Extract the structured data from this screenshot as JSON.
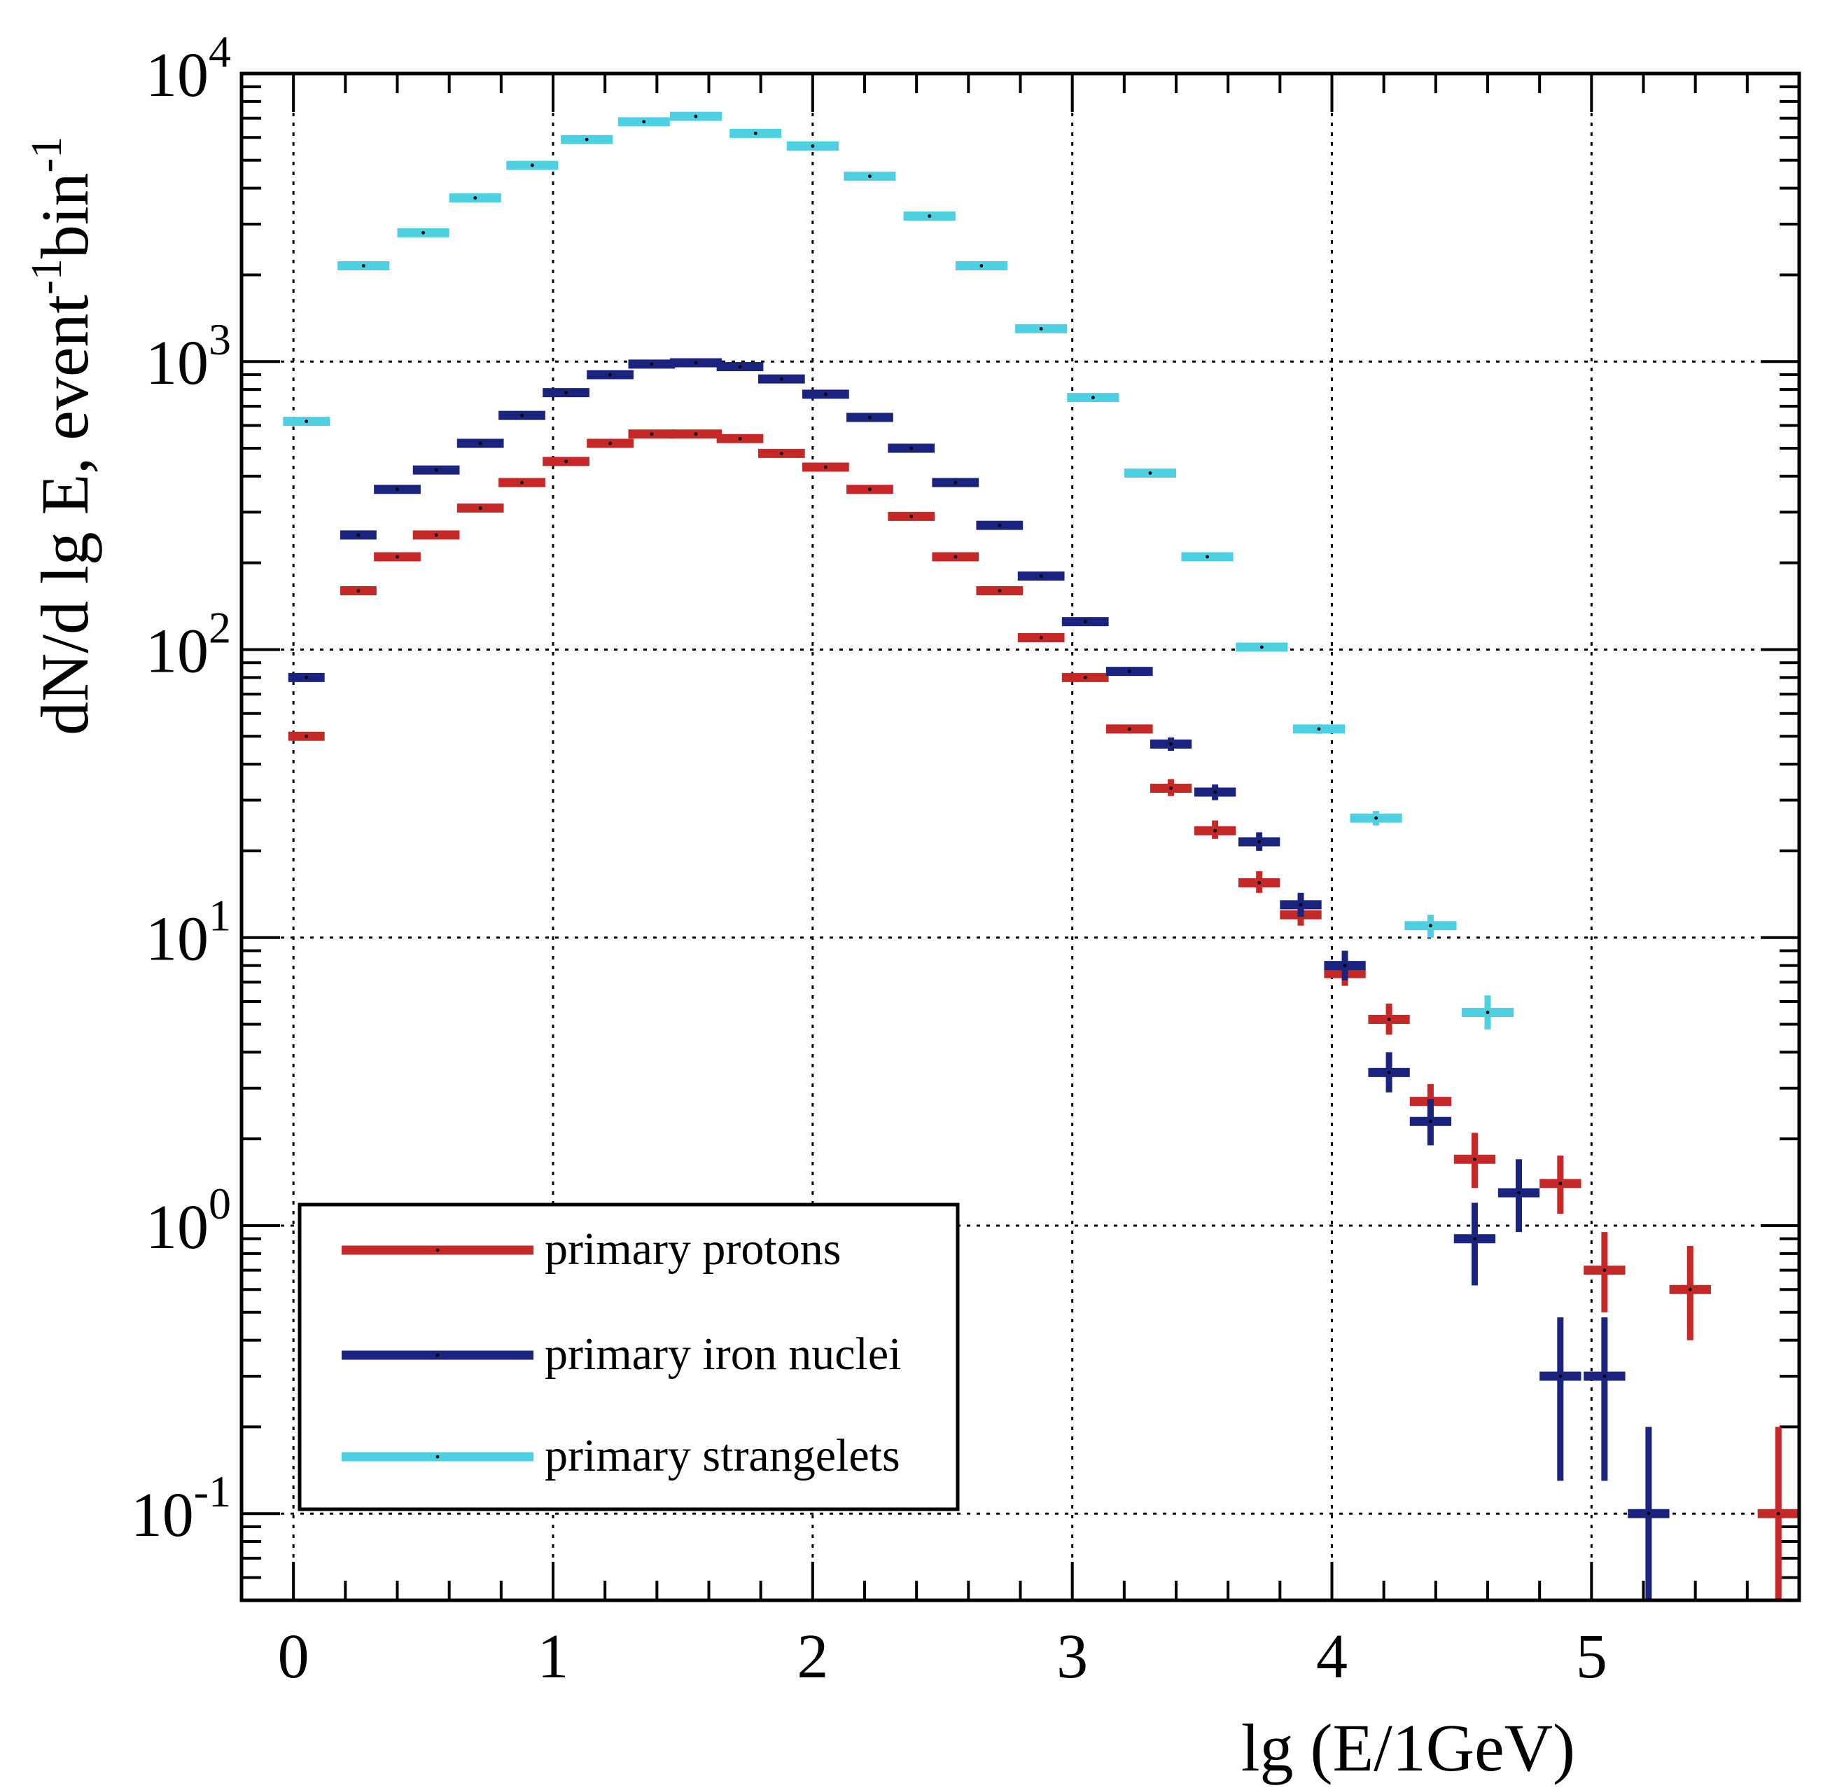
{
  "chart_data": {
    "type": "scatter",
    "style": "histogram-with-error-bars",
    "yscale": "log",
    "xlabel": "lg (E/1GeV)",
    "ylabel": {
      "base": "dN/d lg E, event",
      "sup1": "-1",
      "middle": "bin",
      "sup2": "-1"
    },
    "xlim": [
      -0.2,
      5.8
    ],
    "ylim": [
      0.05,
      10000
    ],
    "x_ticks": [
      {
        "value": 0,
        "label": "0"
      },
      {
        "value": 1,
        "label": "1"
      },
      {
        "value": 2,
        "label": "2"
      },
      {
        "value": 3,
        "label": "3"
      },
      {
        "value": 4,
        "label": "4"
      },
      {
        "value": 5,
        "label": "5"
      }
    ],
    "y_ticks": [
      {
        "value": 0.1,
        "base": "10",
        "exp": "-1"
      },
      {
        "value": 1,
        "base": "10",
        "exp": "0"
      },
      {
        "value": 10,
        "base": "10",
        "exp": "1"
      },
      {
        "value": 100,
        "base": "10",
        "exp": "2"
      },
      {
        "value": 1000,
        "base": "10",
        "exp": "3"
      },
      {
        "value": 10000,
        "base": "10",
        "exp": "4"
      }
    ],
    "grid": true,
    "legend_position": "bottom-left",
    "series": [
      {
        "name": "primary protons",
        "color": "#c62828",
        "points": [
          {
            "x": 0.05,
            "y": 50,
            "xerr": 0.07
          },
          {
            "x": 0.25,
            "y": 160,
            "xerr": 0.07
          },
          {
            "x": 0.4,
            "y": 210,
            "xerr": 0.09
          },
          {
            "x": 0.55,
            "y": 250,
            "xerr": 0.09
          },
          {
            "x": 0.72,
            "y": 310,
            "xerr": 0.09
          },
          {
            "x": 0.88,
            "y": 380,
            "xerr": 0.09
          },
          {
            "x": 1.05,
            "y": 450,
            "xerr": 0.09
          },
          {
            "x": 1.22,
            "y": 520,
            "xerr": 0.09
          },
          {
            "x": 1.38,
            "y": 560,
            "xerr": 0.09
          },
          {
            "x": 1.55,
            "y": 560,
            "xerr": 0.1
          },
          {
            "x": 1.72,
            "y": 540,
            "xerr": 0.09
          },
          {
            "x": 1.88,
            "y": 480,
            "xerr": 0.09
          },
          {
            "x": 2.05,
            "y": 430,
            "xerr": 0.09
          },
          {
            "x": 2.22,
            "y": 360,
            "xerr": 0.09
          },
          {
            "x": 2.38,
            "y": 290,
            "xerr": 0.09
          },
          {
            "x": 2.55,
            "y": 210,
            "xerr": 0.09
          },
          {
            "x": 2.72,
            "y": 160,
            "xerr": 0.09
          },
          {
            "x": 2.88,
            "y": 110,
            "xerr": 0.09
          },
          {
            "x": 3.05,
            "y": 80,
            "xerr": 0.09
          },
          {
            "x": 3.22,
            "y": 53,
            "xerr": 0.09
          },
          {
            "x": 3.38,
            "y": 33,
            "xerr": 0.08,
            "ylo": 31,
            "yhi": 35.5
          },
          {
            "x": 3.55,
            "y": 23.5,
            "xerr": 0.08,
            "ylo": 22,
            "yhi": 25.5
          },
          {
            "x": 3.72,
            "y": 15.5,
            "xerr": 0.08,
            "ylo": 14.3,
            "yhi": 17
          },
          {
            "x": 3.88,
            "y": 12,
            "xerr": 0.08,
            "ylo": 11,
            "yhi": 13.5
          },
          {
            "x": 4.05,
            "y": 7.5,
            "xerr": 0.08,
            "ylo": 6.8,
            "yhi": 8.5
          },
          {
            "x": 4.22,
            "y": 5.2,
            "xerr": 0.08,
            "ylo": 4.6,
            "yhi": 5.9
          },
          {
            "x": 4.38,
            "y": 2.7,
            "xerr": 0.08,
            "ylo": 2.3,
            "yhi": 3.1
          },
          {
            "x": 4.55,
            "y": 1.7,
            "xerr": 0.08,
            "ylo": 1.35,
            "yhi": 2.1
          },
          {
            "x": 4.88,
            "y": 1.4,
            "xerr": 0.08,
            "ylo": 1.1,
            "yhi": 1.75
          },
          {
            "x": 5.05,
            "y": 0.7,
            "xerr": 0.08,
            "ylo": 0.5,
            "yhi": 0.95
          },
          {
            "x": 5.38,
            "y": 0.6,
            "xerr": 0.08,
            "ylo": 0.4,
            "yhi": 0.85
          },
          {
            "x": 5.72,
            "y": 0.1,
            "xerr": 0.08,
            "ylo": 0.05,
            "yhi": 0.2
          }
        ]
      },
      {
        "name": "primary iron nuclei",
        "color": "#1a237e",
        "points": [
          {
            "x": 0.05,
            "y": 80,
            "xerr": 0.07
          },
          {
            "x": 0.25,
            "y": 250,
            "xerr": 0.07
          },
          {
            "x": 0.4,
            "y": 360,
            "xerr": 0.09
          },
          {
            "x": 0.55,
            "y": 420,
            "xerr": 0.09
          },
          {
            "x": 0.72,
            "y": 520,
            "xerr": 0.09
          },
          {
            "x": 0.88,
            "y": 650,
            "xerr": 0.09
          },
          {
            "x": 1.05,
            "y": 780,
            "xerr": 0.09
          },
          {
            "x": 1.22,
            "y": 900,
            "xerr": 0.09
          },
          {
            "x": 1.38,
            "y": 980,
            "xerr": 0.09
          },
          {
            "x": 1.55,
            "y": 990,
            "xerr": 0.1
          },
          {
            "x": 1.72,
            "y": 960,
            "xerr": 0.09
          },
          {
            "x": 1.88,
            "y": 870,
            "xerr": 0.09
          },
          {
            "x": 2.05,
            "y": 770,
            "xerr": 0.09
          },
          {
            "x": 2.22,
            "y": 640,
            "xerr": 0.09
          },
          {
            "x": 2.38,
            "y": 500,
            "xerr": 0.09
          },
          {
            "x": 2.55,
            "y": 380,
            "xerr": 0.09
          },
          {
            "x": 2.72,
            "y": 270,
            "xerr": 0.09
          },
          {
            "x": 2.88,
            "y": 180,
            "xerr": 0.09
          },
          {
            "x": 3.05,
            "y": 125,
            "xerr": 0.09
          },
          {
            "x": 3.22,
            "y": 84,
            "xerr": 0.09
          },
          {
            "x": 3.38,
            "y": 47,
            "xerr": 0.08,
            "ylo": 44.5,
            "yhi": 49.5
          },
          {
            "x": 3.55,
            "y": 32,
            "xerr": 0.08,
            "ylo": 30,
            "yhi": 34
          },
          {
            "x": 3.72,
            "y": 21.5,
            "xerr": 0.08,
            "ylo": 20,
            "yhi": 23.2
          },
          {
            "x": 3.88,
            "y": 13,
            "xerr": 0.08,
            "ylo": 11.8,
            "yhi": 14.3
          },
          {
            "x": 4.05,
            "y": 8,
            "xerr": 0.08,
            "ylo": 7.1,
            "yhi": 9
          },
          {
            "x": 4.22,
            "y": 3.4,
            "xerr": 0.08,
            "ylo": 2.9,
            "yhi": 4
          },
          {
            "x": 4.38,
            "y": 2.3,
            "xerr": 0.08,
            "ylo": 1.9,
            "yhi": 2.75
          },
          {
            "x": 4.55,
            "y": 0.9,
            "xerr": 0.08,
            "ylo": 0.62,
            "yhi": 1.2
          },
          {
            "x": 4.72,
            "y": 1.3,
            "xerr": 0.08,
            "ylo": 0.95,
            "yhi": 1.7
          },
          {
            "x": 4.88,
            "y": 0.3,
            "xerr": 0.08,
            "ylo": 0.13,
            "yhi": 0.48
          },
          {
            "x": 5.05,
            "y": 0.3,
            "xerr": 0.08,
            "ylo": 0.13,
            "yhi": 0.48
          },
          {
            "x": 5.22,
            "y": 0.1,
            "xerr": 0.08,
            "ylo": 0.05,
            "yhi": 0.2
          }
        ]
      },
      {
        "name": "primary strangelets",
        "color": "#4dd0e1",
        "points": [
          {
            "x": 0.05,
            "y": 620,
            "xerr": 0.09
          },
          {
            "x": 0.27,
            "y": 2150,
            "xerr": 0.1
          },
          {
            "x": 0.5,
            "y": 2800,
            "xerr": 0.1
          },
          {
            "x": 0.7,
            "y": 3700,
            "xerr": 0.1
          },
          {
            "x": 0.92,
            "y": 4800,
            "xerr": 0.1
          },
          {
            "x": 1.13,
            "y": 5900,
            "xerr": 0.1
          },
          {
            "x": 1.35,
            "y": 6800,
            "xerr": 0.1
          },
          {
            "x": 1.55,
            "y": 7100,
            "xerr": 0.1
          },
          {
            "x": 1.78,
            "y": 6200,
            "xerr": 0.1
          },
          {
            "x": 2.0,
            "y": 5600,
            "xerr": 0.1
          },
          {
            "x": 2.22,
            "y": 4400,
            "xerr": 0.1
          },
          {
            "x": 2.45,
            "y": 3200,
            "xerr": 0.1
          },
          {
            "x": 2.65,
            "y": 2150,
            "xerr": 0.1
          },
          {
            "x": 2.88,
            "y": 1300,
            "xerr": 0.1
          },
          {
            "x": 3.08,
            "y": 750,
            "xerr": 0.1
          },
          {
            "x": 3.3,
            "y": 410,
            "xerr": 0.1
          },
          {
            "x": 3.52,
            "y": 210,
            "xerr": 0.1
          },
          {
            "x": 3.73,
            "y": 102,
            "xerr": 0.1
          },
          {
            "x": 3.95,
            "y": 53,
            "xerr": 0.1,
            "ylo": 51,
            "yhi": 55
          },
          {
            "x": 4.17,
            "y": 26,
            "xerr": 0.1,
            "ylo": 24.5,
            "yhi": 27.5
          },
          {
            "x": 4.38,
            "y": 11,
            "xerr": 0.1,
            "ylo": 10,
            "yhi": 12
          },
          {
            "x": 4.6,
            "y": 5.5,
            "xerr": 0.1,
            "ylo": 4.8,
            "yhi": 6.3
          }
        ]
      }
    ]
  }
}
